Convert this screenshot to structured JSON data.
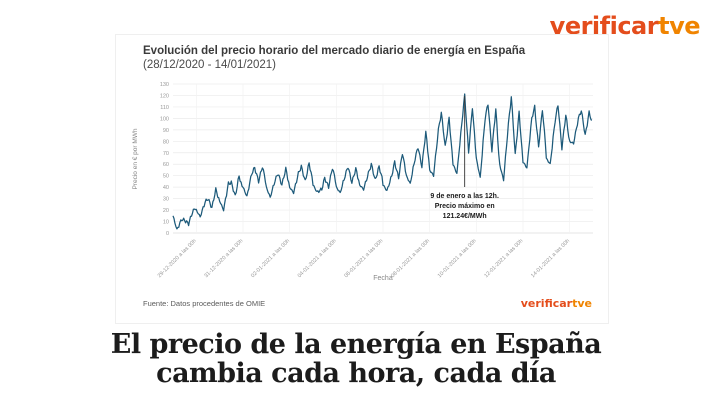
{
  "logo": {
    "part1": "verificar",
    "part2": "tve"
  },
  "chart_card": {
    "title": "Evolución del precio horario del mercado diario de energía en España",
    "subtitle": "(28/12/2020 - 14/01/2021)",
    "source": "Fuente: Datos procedentes de OMIE",
    "footer_logo": {
      "part1": "verificar",
      "part2": "tve"
    }
  },
  "chart_data": {
    "type": "line",
    "title": "Evolución del precio horario del mercado diario de energía en España",
    "subtitle": "(28/12/2020 - 14/01/2021)",
    "xlabel": "Fecha",
    "ylabel": "Precio en € por MWh",
    "ylim": [
      0,
      130
    ],
    "yticks": [
      0,
      10,
      20,
      30,
      40,
      50,
      60,
      70,
      80,
      90,
      100,
      110,
      120,
      130
    ],
    "granularity": "hourly",
    "hours_total": 432,
    "xtick_hours": [
      24,
      72,
      120,
      168,
      216,
      264,
      312,
      360,
      408
    ],
    "xtick_labels": [
      "29-12-2020 a las 00h",
      "31-12-2020 a las 00h",
      "02-01-2021 a las 00h",
      "04-01-2021 a las 00h",
      "06-01-2021 a las 00h",
      "08-01-2021 a las 00h",
      "10-01-2021 a las 00h",
      "12-01-2021 a las 00h",
      "14-01-2021 a las 00h"
    ],
    "line_color": "#1d5a7a",
    "grid_color": "#ebebeb",
    "axis_text_color": "#999999",
    "max_point": {
      "date": "09-01-2021",
      "hour": 12,
      "value": 121.24
    },
    "annotation": {
      "hour_index": 300,
      "lines": [
        "9 de enero a las 12h.",
        "Precio máximo en",
        "121.24€/MWh"
      ]
    },
    "ctrl_hours": [
      0,
      4,
      9,
      12,
      16,
      20,
      23
    ],
    "days": [
      {
        "date": "28-12-2020",
        "ctrl": [
          15,
          3,
          12,
          11,
          8,
          18,
          22
        ]
      },
      {
        "date": "29-12-2020",
        "ctrl": [
          20,
          14,
          27,
          30,
          22,
          38,
          30
        ]
      },
      {
        "date": "30-12-2020",
        "ctrl": [
          28,
          20,
          43,
          44,
          32,
          50,
          40
        ]
      },
      {
        "date": "31-12-2020",
        "ctrl": [
          40,
          32,
          52,
          57,
          45,
          58,
          46
        ]
      },
      {
        "date": "01-01-2021",
        "ctrl": [
          40,
          31,
          46,
          52,
          42,
          56,
          44
        ]
      },
      {
        "date": "02-01-2021",
        "ctrl": [
          40,
          35,
          52,
          58,
          45,
          61,
          48
        ]
      },
      {
        "date": "03-01-2021",
        "ctrl": [
          42,
          36,
          38,
          48,
          40,
          57,
          46
        ]
      },
      {
        "date": "04-01-2021",
        "ctrl": [
          40,
          35,
          50,
          58,
          44,
          56,
          46
        ]
      },
      {
        "date": "05-01-2021",
        "ctrl": [
          42,
          38,
          52,
          60,
          46,
          58,
          48
        ]
      },
      {
        "date": "06-01-2021",
        "ctrl": [
          42,
          37,
          50,
          62,
          48,
          70,
          55
        ]
      },
      {
        "date": "07-01-2021",
        "ctrl": [
          50,
          43,
          65,
          75,
          58,
          88,
          65
        ]
      },
      {
        "date": "08-01-2021",
        "ctrl": [
          55,
          50,
          90,
          105,
          75,
          100,
          70
        ]
      },
      {
        "date": "09-01-2021",
        "ctrl": [
          60,
          52,
          95,
          121.24,
          70,
          110,
          75
        ]
      },
      {
        "date": "10-01-2021",
        "ctrl": [
          65,
          48,
          100,
          113,
          72,
          108,
          70
        ]
      },
      {
        "date": "11-01-2021",
        "ctrl": [
          60,
          46,
          95,
          119,
          68,
          105,
          72
        ]
      },
      {
        "date": "12-01-2021",
        "ctrl": [
          62,
          57,
          100,
          110,
          75,
          108,
          78
        ]
      },
      {
        "date": "13-01-2021",
        "ctrl": [
          65,
          60,
          98,
          112,
          74,
          103,
          85
        ]
      },
      {
        "date": "14-01-2021",
        "ctrl": [
          80,
          78,
          100,
          107,
          85,
          105,
          97
        ]
      }
    ]
  },
  "headline": {
    "line1": "El precio de la energía en España",
    "line2": "cambia cada hora, cada día"
  }
}
